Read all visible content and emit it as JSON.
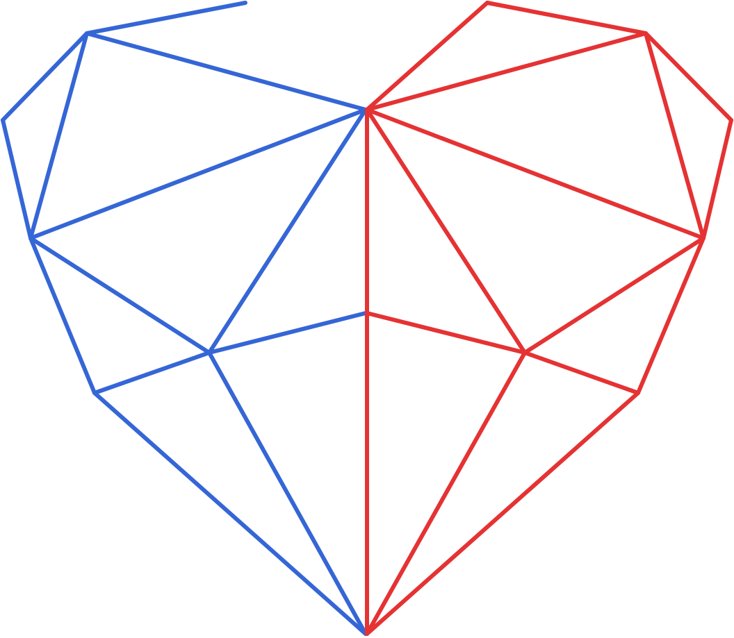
{
  "artwork": {
    "subject": "low-poly-geometric-heart-outline",
    "background_color": "#ffffff",
    "left_half": {
      "color": "#3566d6"
    },
    "right_half": {
      "color": "#e53233"
    }
  }
}
